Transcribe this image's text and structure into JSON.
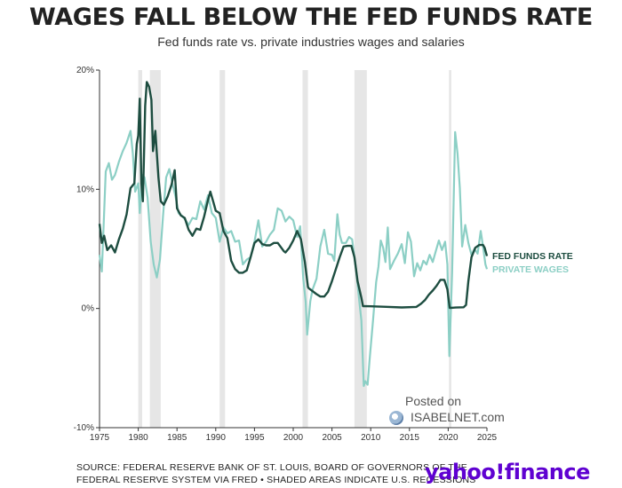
{
  "title": "WAGES FALL BELOW THE FED FUNDS RATE",
  "subtitle": "Fed funds rate vs. private industries wages and salaries",
  "source_line1": "SOURCE: FEDERAL RESERVE BANK OF ST. LOUIS, BOARD OF GOVERNORS OF THE",
  "source_line2": "FEDERAL RESERVE SYSTEM VIA FRED • SHADED AREAS INDICATE U.S. RECESSIONS",
  "logo_text": "yahoo!",
  "logo_finance": "finance",
  "watermark_posted": "Posted on",
  "watermark_brand": "ISABELNET.com",
  "colors": {
    "fed": "#1d4d40",
    "wages": "#8ccfc5",
    "recession": "#e6e6e6",
    "axis": "#333333",
    "logo": "#5f01d1"
  },
  "chart_data": {
    "type": "line",
    "title": "WAGES FALL BELOW THE FED FUNDS RATE",
    "subtitle": "Fed funds rate vs. private industries wages and salaries",
    "xlabel": "",
    "ylabel": "",
    "xlim": [
      1975,
      2025
    ],
    "ylim": [
      -10,
      20
    ],
    "x_ticks": [
      1975,
      1980,
      1985,
      1990,
      1995,
      2000,
      2005,
      2010,
      2015,
      2020,
      2025
    ],
    "x_tick_labels": [
      "1975",
      "1980",
      "1985",
      "1990",
      "1995",
      "2000",
      "2005",
      "2010",
      "2015",
      "2020",
      "2025"
    ],
    "y_ticks": [
      -10,
      0,
      10,
      20
    ],
    "y_tick_labels": [
      "-10%",
      "0%",
      "10%",
      "20%"
    ],
    "grid": false,
    "recessions": [
      [
        1980.0,
        1980.5
      ],
      [
        1981.5,
        1982.9
      ],
      [
        1990.5,
        1991.2
      ],
      [
        2001.2,
        2001.9
      ],
      [
        2007.9,
        2009.5
      ],
      [
        2020.1,
        2020.4
      ]
    ],
    "series": [
      {
        "name": "FED FUNDS RATE",
        "color": "#1d4d40",
        "points": [
          [
            1975,
            7.1
          ],
          [
            1975.3,
            5.5
          ],
          [
            1975.6,
            6.1
          ],
          [
            1976,
            4.9
          ],
          [
            1976.5,
            5.3
          ],
          [
            1977,
            4.7
          ],
          [
            1977.5,
            5.8
          ],
          [
            1978,
            6.7
          ],
          [
            1978.5,
            7.9
          ],
          [
            1979,
            10.1
          ],
          [
            1979.5,
            10.5
          ],
          [
            1979.8,
            13.8
          ],
          [
            1980,
            14.5
          ],
          [
            1980.2,
            17.6
          ],
          [
            1980.4,
            10.5
          ],
          [
            1980.6,
            9.0
          ],
          [
            1980.9,
            17.0
          ],
          [
            1981.1,
            19.0
          ],
          [
            1981.4,
            18.6
          ],
          [
            1981.7,
            17.5
          ],
          [
            1981.9,
            13.2
          ],
          [
            1982.2,
            14.9
          ],
          [
            1982.6,
            11.0
          ],
          [
            1982.9,
            9.0
          ],
          [
            1983.3,
            8.7
          ],
          [
            1983.8,
            9.4
          ],
          [
            1984.3,
            10.4
          ],
          [
            1984.7,
            11.6
          ],
          [
            1985,
            8.4
          ],
          [
            1985.5,
            7.8
          ],
          [
            1986,
            7.6
          ],
          [
            1986.5,
            6.6
          ],
          [
            1987,
            6.1
          ],
          [
            1987.5,
            6.7
          ],
          [
            1988,
            6.6
          ],
          [
            1988.5,
            7.7
          ],
          [
            1989,
            9.1
          ],
          [
            1989.3,
            9.8
          ],
          [
            1989.7,
            8.9
          ],
          [
            1990,
            8.2
          ],
          [
            1990.5,
            8.0
          ],
          [
            1991,
            6.5
          ],
          [
            1991.5,
            5.9
          ],
          [
            1992,
            4.0
          ],
          [
            1992.5,
            3.3
          ],
          [
            1993,
            3.0
          ],
          [
            1993.5,
            3.0
          ],
          [
            1994,
            3.2
          ],
          [
            1994.5,
            4.3
          ],
          [
            1995,
            5.5
          ],
          [
            1995.5,
            5.8
          ],
          [
            1996,
            5.4
          ],
          [
            1996.5,
            5.3
          ],
          [
            1997,
            5.3
          ],
          [
            1997.5,
            5.5
          ],
          [
            1998,
            5.5
          ],
          [
            1998.8,
            4.8
          ],
          [
            1999,
            4.7
          ],
          [
            1999.5,
            5.1
          ],
          [
            2000,
            5.7
          ],
          [
            2000.5,
            6.5
          ],
          [
            2001,
            5.8
          ],
          [
            2001.5,
            3.9
          ],
          [
            2001.9,
            1.8
          ],
          [
            2002,
            1.7
          ],
          [
            2003,
            1.2
          ],
          [
            2003.5,
            1.0
          ],
          [
            2004,
            1.0
          ],
          [
            2004.5,
            1.4
          ],
          [
            2005,
            2.3
          ],
          [
            2005.5,
            3.3
          ],
          [
            2006,
            4.3
          ],
          [
            2006.5,
            5.2
          ],
          [
            2007,
            5.25
          ],
          [
            2007.5,
            5.25
          ],
          [
            2007.9,
            4.3
          ],
          [
            2008.3,
            2.3
          ],
          [
            2008.8,
            0.9
          ],
          [
            2009,
            0.2
          ],
          [
            2010,
            0.18
          ],
          [
            2012,
            0.14
          ],
          [
            2014,
            0.09
          ],
          [
            2015.9,
            0.13
          ],
          [
            2016.5,
            0.4
          ],
          [
            2017,
            0.7
          ],
          [
            2017.5,
            1.15
          ],
          [
            2018,
            1.5
          ],
          [
            2018.5,
            1.9
          ],
          [
            2019,
            2.4
          ],
          [
            2019.5,
            2.4
          ],
          [
            2019.9,
            1.6
          ],
          [
            2020.2,
            0.05
          ],
          [
            2021,
            0.08
          ],
          [
            2022,
            0.1
          ],
          [
            2022.3,
            0.3
          ],
          [
            2022.6,
            2.3
          ],
          [
            2023,
            4.3
          ],
          [
            2023.5,
            5.1
          ],
          [
            2024,
            5.33
          ],
          [
            2024.5,
            5.33
          ],
          [
            2024.7,
            5.1
          ],
          [
            2025,
            4.4
          ]
        ]
      },
      {
        "name": "PRIVATE WAGES",
        "color": "#8ccfc5",
        "points": [
          [
            1975,
            4.5
          ],
          [
            1975.3,
            3.1
          ],
          [
            1975.8,
            11.5
          ],
          [
            1976.2,
            12.2
          ],
          [
            1976.6,
            10.8
          ],
          [
            1977,
            11.2
          ],
          [
            1977.5,
            12.3
          ],
          [
            1978,
            13.2
          ],
          [
            1978.5,
            13.9
          ],
          [
            1979,
            14.9
          ],
          [
            1979.3,
            13.0
          ],
          [
            1979.6,
            9.8
          ],
          [
            1980,
            10.5
          ],
          [
            1980.2,
            8.0
          ],
          [
            1980.5,
            11.2
          ],
          [
            1980.8,
            11.0
          ],
          [
            1981.2,
            9.3
          ],
          [
            1981.6,
            5.6
          ],
          [
            1982,
            3.7
          ],
          [
            1982.4,
            2.6
          ],
          [
            1982.8,
            4.1
          ],
          [
            1983.2,
            7.8
          ],
          [
            1983.6,
            11.0
          ],
          [
            1984,
            11.7
          ],
          [
            1984.4,
            10.5
          ],
          [
            1984.8,
            9.4
          ],
          [
            1985.2,
            8.0
          ],
          [
            1985.6,
            7.8
          ],
          [
            1986,
            7.5
          ],
          [
            1986.5,
            7.0
          ],
          [
            1987,
            7.6
          ],
          [
            1987.5,
            7.5
          ],
          [
            1988,
            9.0
          ],
          [
            1988.5,
            8.3
          ],
          [
            1989,
            9.5
          ],
          [
            1989.5,
            8.0
          ],
          [
            1990,
            7.6
          ],
          [
            1990.5,
            5.6
          ],
          [
            1991,
            6.8
          ],
          [
            1991.5,
            6.3
          ],
          [
            1992,
            6.5
          ],
          [
            1992.5,
            5.6
          ],
          [
            1993,
            5.7
          ],
          [
            1993.5,
            3.7
          ],
          [
            1994,
            4.1
          ],
          [
            1994.5,
            4.3
          ],
          [
            1995,
            5.6
          ],
          [
            1995.5,
            7.4
          ],
          [
            1996,
            5.2
          ],
          [
            1996.5,
            5.6
          ],
          [
            1997,
            6.2
          ],
          [
            1997.5,
            6.6
          ],
          [
            1998,
            8.4
          ],
          [
            1998.5,
            8.2
          ],
          [
            1999,
            7.3
          ],
          [
            1999.5,
            7.7
          ],
          [
            2000,
            7.4
          ],
          [
            2000.5,
            6.0
          ],
          [
            2000.9,
            6.9
          ],
          [
            2001.3,
            2.5
          ],
          [
            2001.6,
            0.6
          ],
          [
            2001.8,
            -2.2
          ],
          [
            2002.2,
            0.6
          ],
          [
            2002.5,
            1.6
          ],
          [
            2003,
            2.5
          ],
          [
            2003.5,
            5.2
          ],
          [
            2004,
            6.6
          ],
          [
            2004.5,
            4.6
          ],
          [
            2005,
            4.5
          ],
          [
            2005.3,
            4.0
          ],
          [
            2005.7,
            7.9
          ],
          [
            2006,
            6.2
          ],
          [
            2006.3,
            5.5
          ],
          [
            2006.8,
            5.5
          ],
          [
            2007.2,
            6.0
          ],
          [
            2007.6,
            5.8
          ],
          [
            2008.1,
            3.3
          ],
          [
            2008.5,
            0.8
          ],
          [
            2008.8,
            -1.0
          ],
          [
            2009.1,
            -6.5
          ],
          [
            2009.3,
            -6.1
          ],
          [
            2009.6,
            -6.4
          ],
          [
            2009.9,
            -4.0
          ],
          [
            2010.3,
            -1.0
          ],
          [
            2010.7,
            2.2
          ],
          [
            2011,
            3.5
          ],
          [
            2011.3,
            5.7
          ],
          [
            2011.6,
            5.1
          ],
          [
            2011.9,
            3.9
          ],
          [
            2012.2,
            6.8
          ],
          [
            2012.5,
            3.3
          ],
          [
            2013,
            4.0
          ],
          [
            2013.5,
            4.6
          ],
          [
            2014,
            5.4
          ],
          [
            2014.4,
            3.8
          ],
          [
            2014.8,
            6.4
          ],
          [
            2015.2,
            5.6
          ],
          [
            2015.6,
            2.7
          ],
          [
            2016,
            3.8
          ],
          [
            2016.4,
            3.2
          ],
          [
            2016.8,
            4.0
          ],
          [
            2017.2,
            3.7
          ],
          [
            2017.6,
            4.5
          ],
          [
            2018,
            3.9
          ],
          [
            2018.4,
            4.8
          ],
          [
            2018.8,
            5.7
          ],
          [
            2019.2,
            4.9
          ],
          [
            2019.6,
            5.6
          ],
          [
            2019.9,
            3.7
          ],
          [
            2020.15,
            -4.0
          ],
          [
            2020.5,
            3.0
          ],
          [
            2020.9,
            14.8
          ],
          [
            2021.2,
            13.0
          ],
          [
            2021.5,
            10.1
          ],
          [
            2021.8,
            5.2
          ],
          [
            2022.2,
            7.0
          ],
          [
            2022.6,
            5.5
          ],
          [
            2023,
            4.5
          ],
          [
            2023.4,
            5.0
          ],
          [
            2023.8,
            4.6
          ],
          [
            2024.2,
            6.5
          ],
          [
            2024.5,
            5.2
          ],
          [
            2024.8,
            3.7
          ],
          [
            2025,
            3.3
          ]
        ]
      }
    ]
  }
}
